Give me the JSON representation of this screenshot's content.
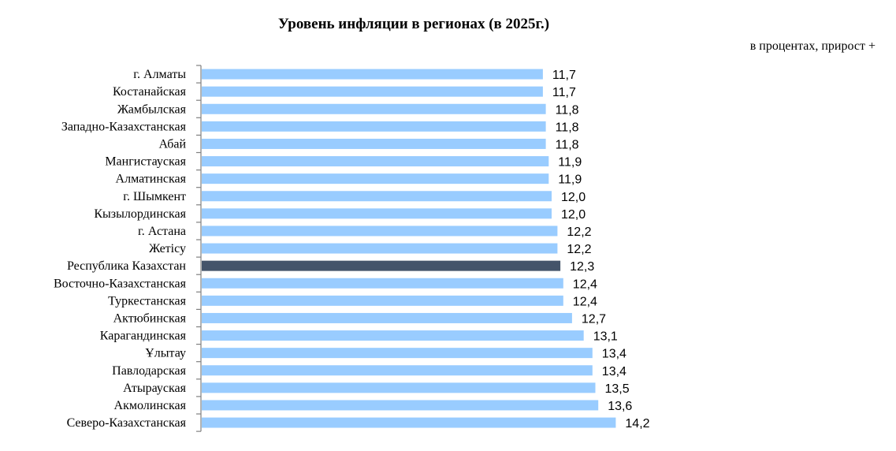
{
  "chart_data": {
    "type": "bar",
    "orientation": "horizontal",
    "title": "Уровень инфляции в регионах (в 2025г.)",
    "unit_note": "в процентах, прирост +",
    "categories": [
      "г. Алматы",
      "Костанайская",
      "Жамбылская",
      "Западно-Казахстанская",
      "Абай",
      "Мангистауская",
      "Алматинская",
      "г. Шымкент",
      "Кызылординская",
      "г. Астана",
      "Жетісу",
      "Республика Казахстан",
      "Восточно-Казахстанская",
      "Туркестанская",
      "Актюбинская",
      "Карагандинская",
      "Ұлытау",
      "Павлодарская",
      "Атырауская",
      "Акмолинская",
      "Северо-Казахстанская"
    ],
    "values": [
      11.7,
      11.7,
      11.8,
      11.8,
      11.8,
      11.9,
      11.9,
      12.0,
      12.0,
      12.2,
      12.2,
      12.3,
      12.4,
      12.4,
      12.7,
      13.1,
      13.4,
      13.4,
      13.5,
      13.6,
      14.2
    ],
    "value_labels": [
      "11,7",
      "11,7",
      "11,8",
      "11,8",
      "11,8",
      "11,9",
      "11,9",
      "12,0",
      "12,0",
      "12,2",
      "12,2",
      "12,3",
      "12,4",
      "12,4",
      "12,7",
      "13,1",
      "13,4",
      "13,4",
      "13,5",
      "13,6",
      "14,2"
    ],
    "highlight_category": "Республика Казахстан",
    "xlim": [
      0,
      15
    ],
    "grid": false,
    "legend": "none",
    "colors": {
      "bar": "#99CCFF",
      "highlight": "#44546A",
      "axis": "#808080"
    }
  }
}
